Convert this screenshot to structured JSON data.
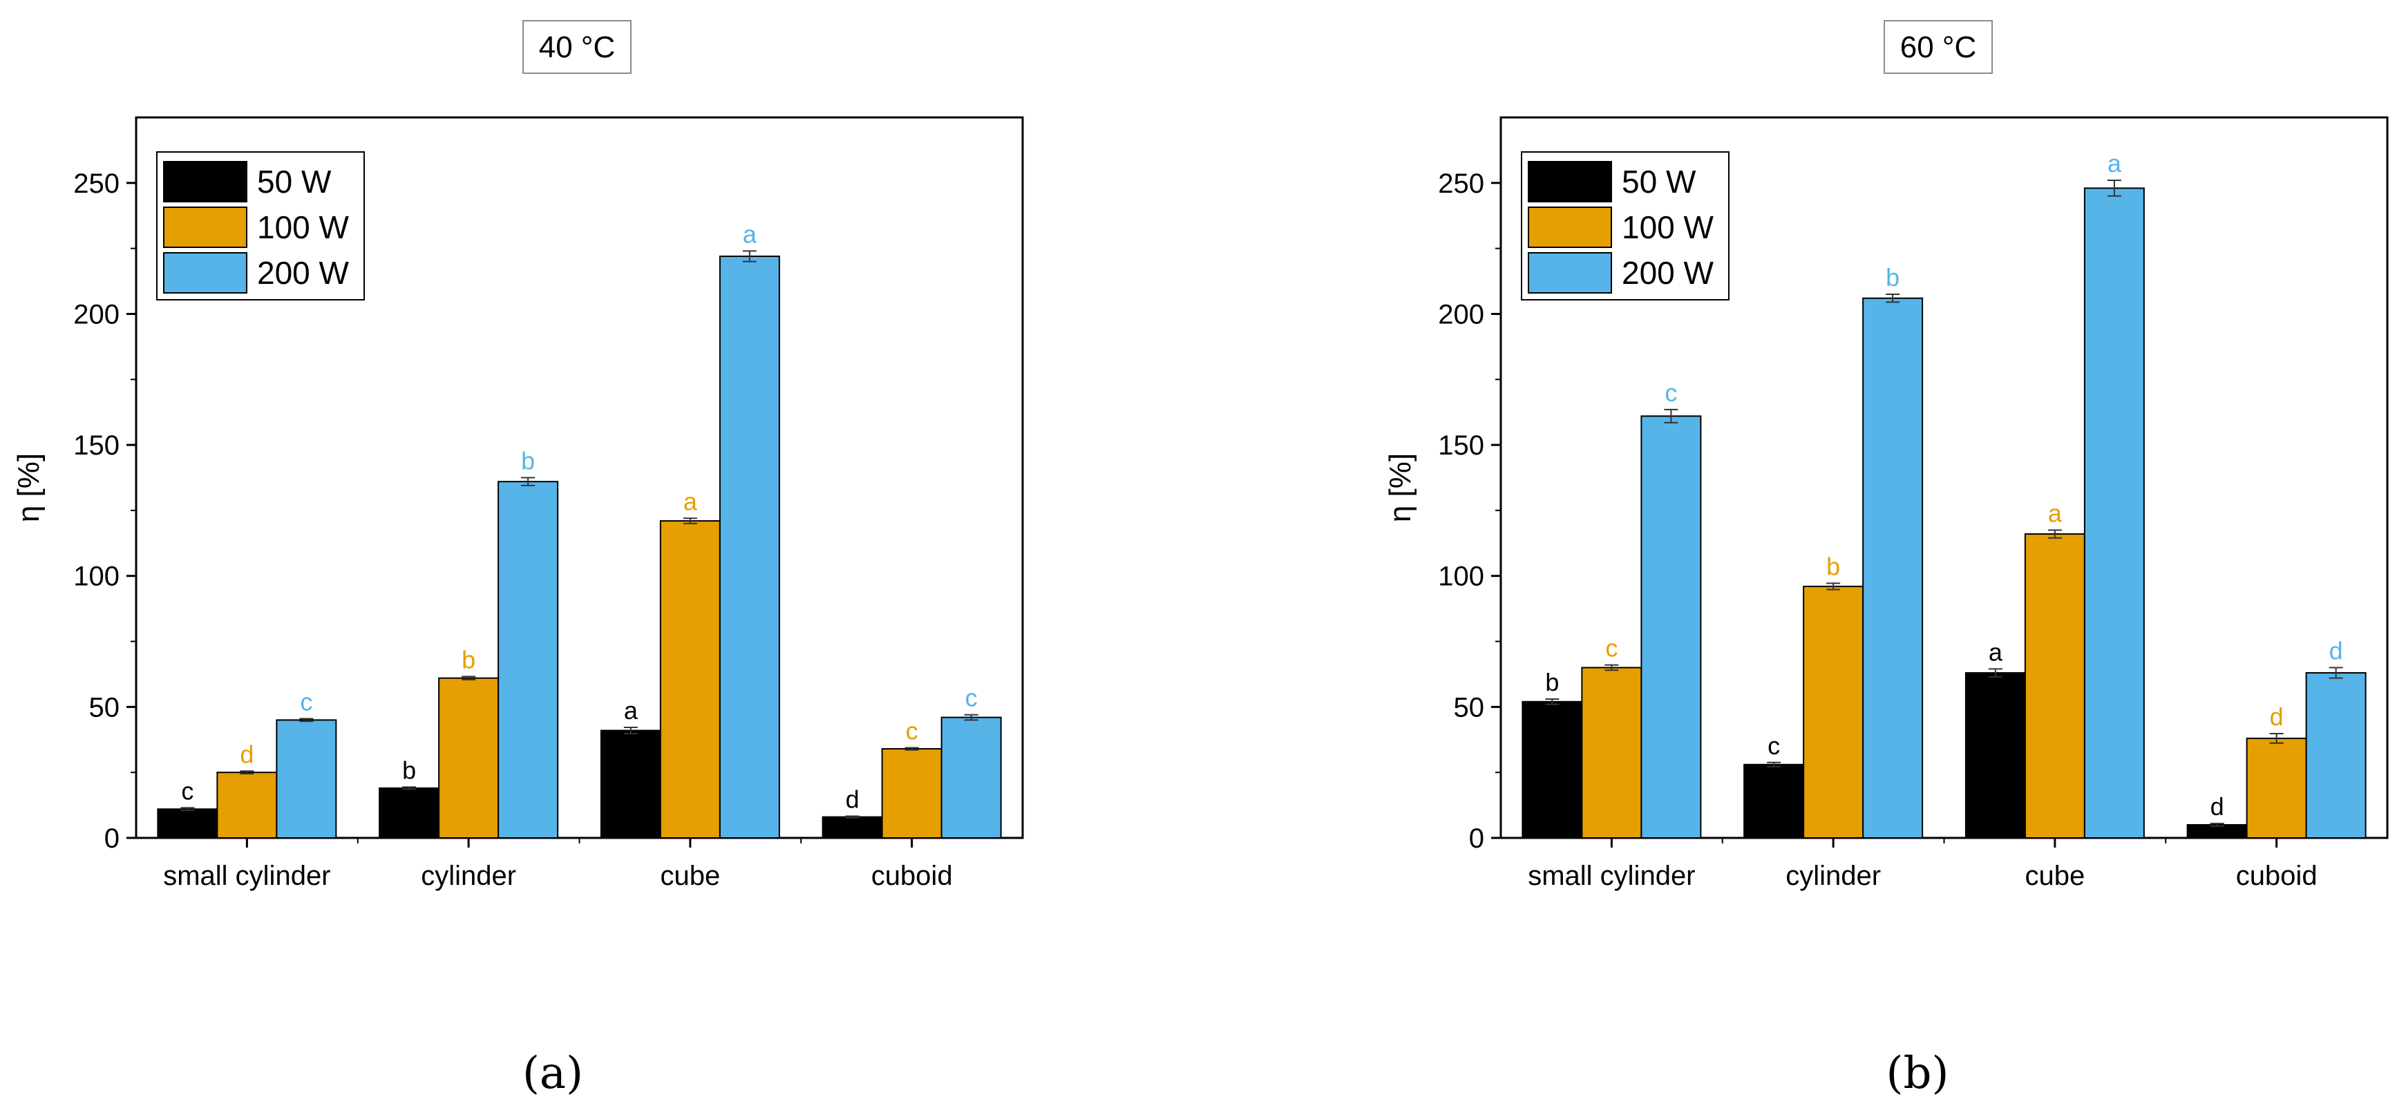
{
  "figure": {
    "panel_labels": [
      "(a)",
      "(b)"
    ]
  },
  "colors": {
    "w50": "#000000",
    "w100": "#E69F00",
    "w200": "#56B4E9",
    "axis": "#000000",
    "title_box": "#8c8c8c"
  },
  "chart_data": [
    {
      "type": "bar",
      "title": "40 °C",
      "xlabel": "",
      "ylabel": "η [%]",
      "ylim": [
        0,
        275
      ],
      "yticks": [
        0,
        50,
        100,
        150,
        200,
        250
      ],
      "categories": [
        "small cylinder",
        "cylinder",
        "cube",
        "cuboid"
      ],
      "legend_position": "top-left",
      "series": [
        {
          "name": "50 W",
          "color": "#000000",
          "values": [
            11,
            19,
            41,
            8
          ],
          "errors": [
            0.5,
            0.4,
            1.2,
            0.3
          ],
          "letters": [
            "c",
            "b",
            "a",
            "d"
          ]
        },
        {
          "name": "100 W",
          "color": "#E69F00",
          "values": [
            25,
            61,
            121,
            34
          ],
          "errors": [
            0.5,
            0.6,
            1.0,
            0.4
          ],
          "letters": [
            "d",
            "b",
            "a",
            "c"
          ]
        },
        {
          "name": "200 W",
          "color": "#56B4E9",
          "values": [
            45,
            136,
            222,
            46
          ],
          "errors": [
            0.5,
            1.5,
            2.0,
            1.0
          ],
          "letters": [
            "c",
            "b",
            "a",
            "c"
          ]
        }
      ],
      "panel_label": "(a)"
    },
    {
      "type": "bar",
      "title": "60 °C",
      "xlabel": "",
      "ylabel": "η [%]",
      "ylim": [
        0,
        275
      ],
      "yticks": [
        0,
        50,
        100,
        150,
        200,
        250
      ],
      "categories": [
        "small cylinder",
        "cylinder",
        "cube",
        "cuboid"
      ],
      "legend_position": "top-left",
      "series": [
        {
          "name": "50 W",
          "color": "#000000",
          "values": [
            52,
            28,
            63,
            5
          ],
          "errors": [
            1.0,
            0.8,
            1.5,
            0.5
          ],
          "letters": [
            "b",
            "c",
            "a",
            "d"
          ]
        },
        {
          "name": "100 W",
          "color": "#E69F00",
          "values": [
            65,
            96,
            116,
            38
          ],
          "errors": [
            1.0,
            1.2,
            1.5,
            1.8
          ],
          "letters": [
            "c",
            "b",
            "a",
            "d"
          ]
        },
        {
          "name": "200 W",
          "color": "#56B4E9",
          "values": [
            161,
            206,
            248,
            63
          ],
          "errors": [
            2.5,
            1.5,
            3.0,
            2.0
          ],
          "letters": [
            "c",
            "b",
            "a",
            "d"
          ]
        }
      ],
      "panel_label": "(b)"
    }
  ]
}
